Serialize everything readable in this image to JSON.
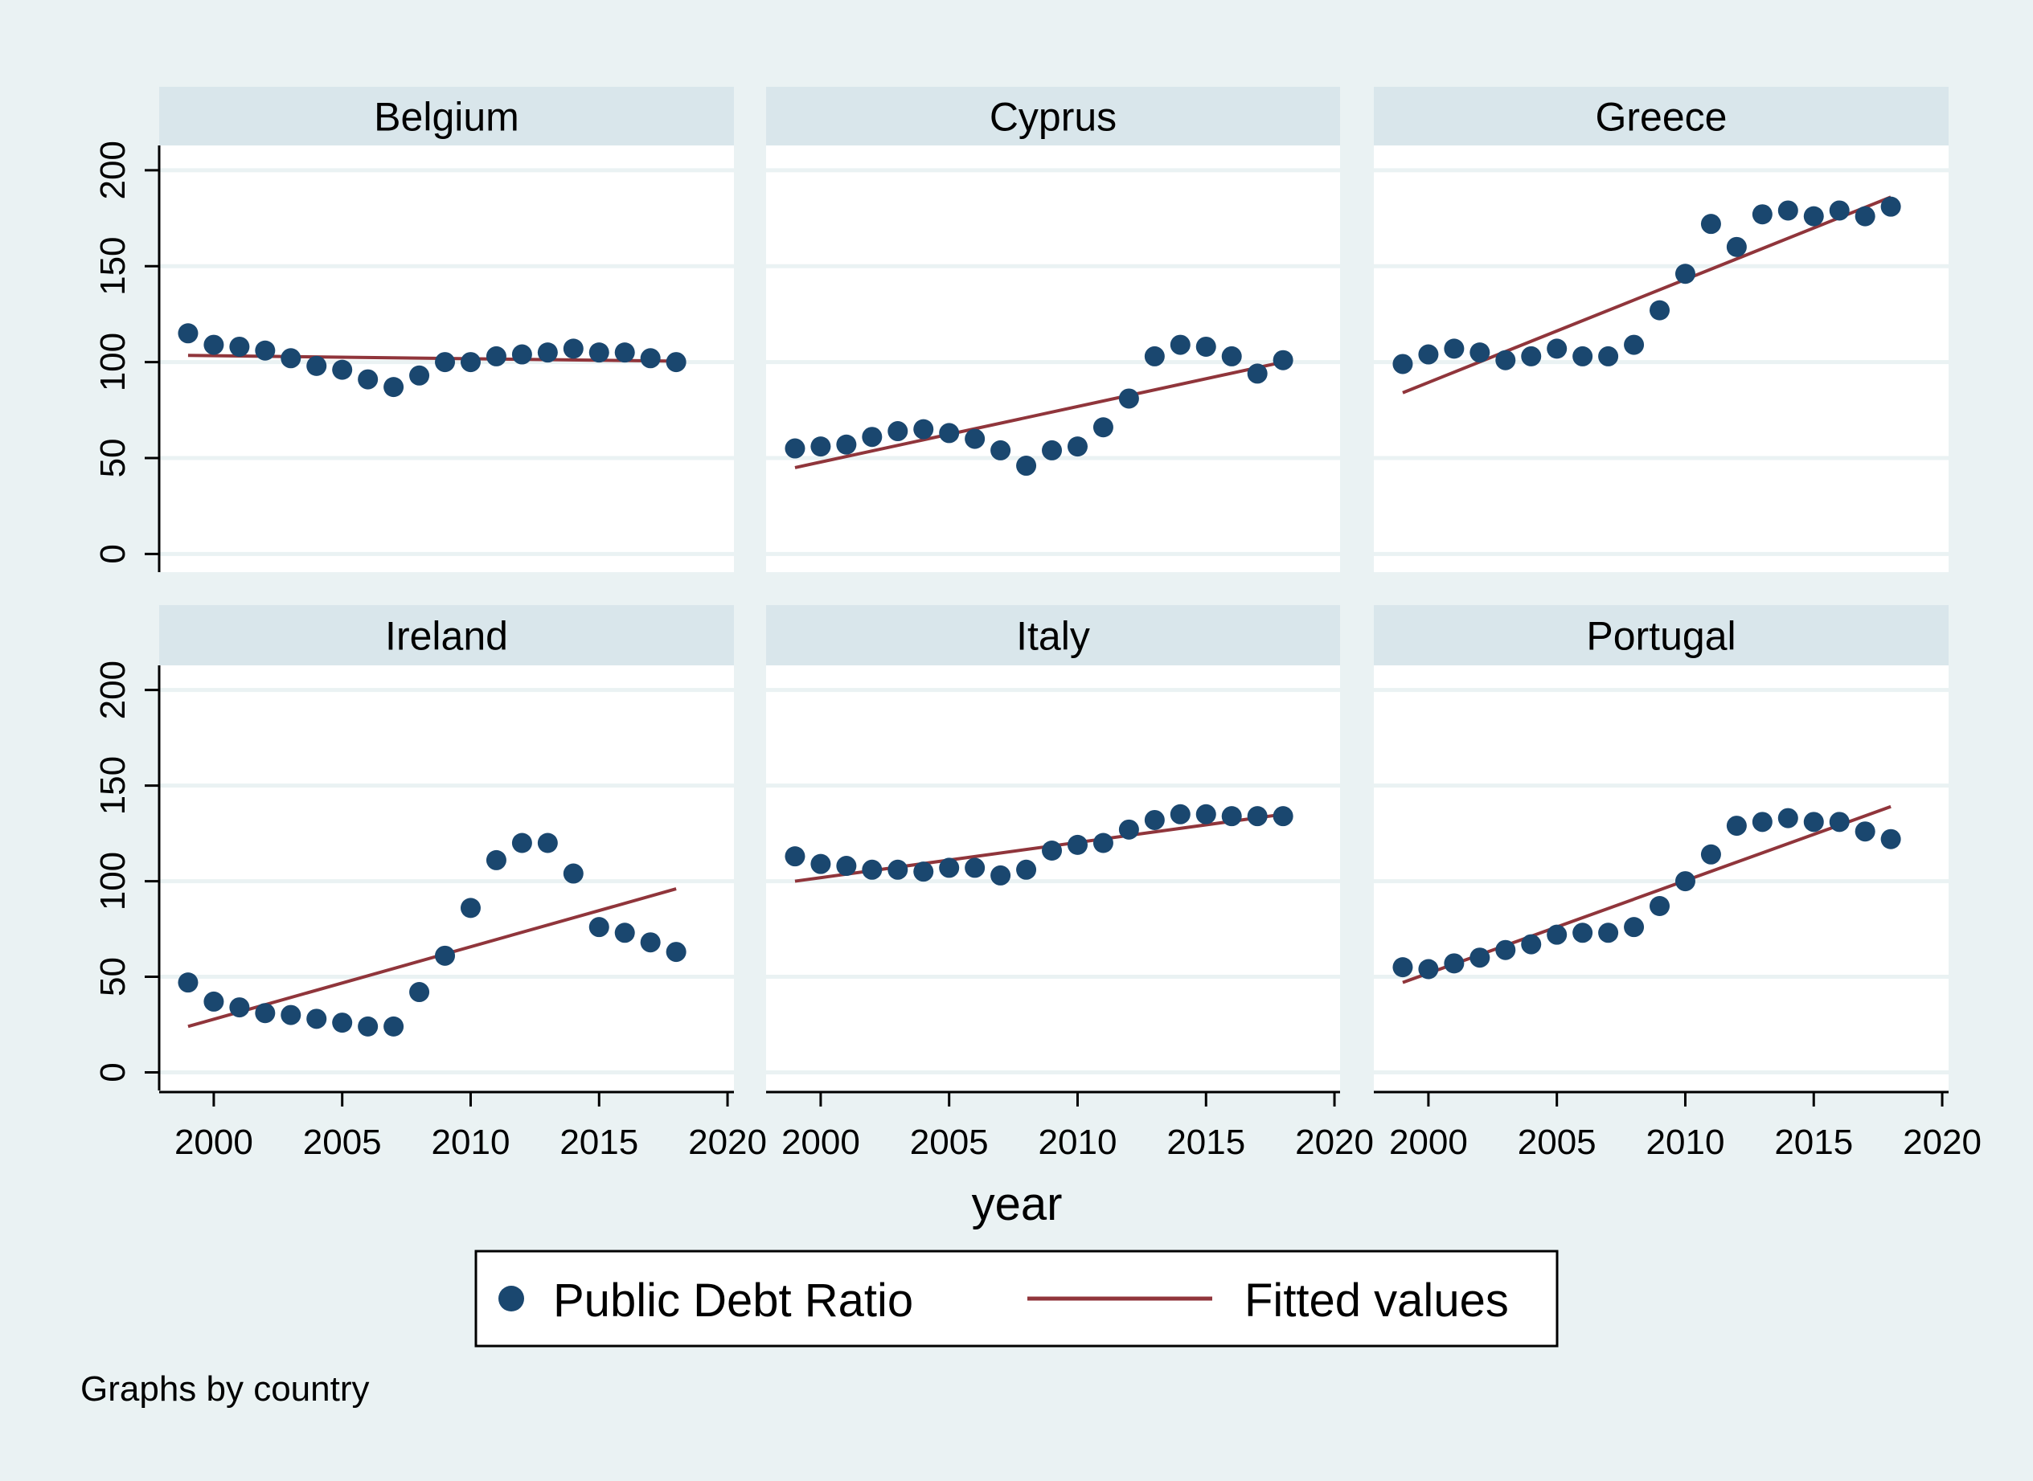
{
  "chart_data": {
    "type": "scatter",
    "facet_by": "country",
    "x_title": "year",
    "x_ticks": [
      2000,
      2005,
      2010,
      2015,
      2020
    ],
    "y_ticks": [
      0,
      50,
      100,
      150,
      200
    ],
    "xlim": [
      1998,
      2021
    ],
    "ylim": [
      -12,
      215
    ],
    "legend": {
      "position": "bottom",
      "items": [
        {
          "name": "Public Debt Ratio",
          "marker": "dot",
          "color": "#1a476f"
        },
        {
          "name": "Fitted values",
          "marker": "line",
          "color": "#90353b"
        }
      ]
    },
    "note": "Graphs by country",
    "colors": {
      "background": "#eaf2f3",
      "plot_region": "#ffffff",
      "panel_header": "#d9e6eb",
      "gridline": "#eaf2f3",
      "points": "#1a476f",
      "fit_line": "#90353b"
    },
    "years": [
      1999,
      2000,
      2001,
      2002,
      2003,
      2004,
      2005,
      2006,
      2007,
      2008,
      2009,
      2010,
      2011,
      2012,
      2013,
      2014,
      2015,
      2016,
      2017,
      2018
    ],
    "panels": [
      {
        "country": "Belgium",
        "values": [
          115,
          109,
          108,
          106,
          102,
          98,
          96,
          91,
          87,
          93,
          100,
          100,
          103,
          104,
          105,
          107,
          105,
          105,
          102,
          100
        ],
        "fit": [
          103.5,
          100.5
        ]
      },
      {
        "country": "Cyprus",
        "values": [
          55,
          56,
          57,
          61,
          64,
          65,
          63,
          60,
          54,
          46,
          54,
          56,
          66,
          81,
          103,
          109,
          108,
          103,
          94,
          101
        ],
        "fit": [
          45,
          100
        ]
      },
      {
        "country": "Greece",
        "values": [
          99,
          104,
          107,
          105,
          101,
          103,
          107,
          103,
          103,
          109,
          127,
          146,
          172,
          160,
          177,
          179,
          176,
          179,
          176,
          181
        ],
        "fit": [
          84,
          186
        ]
      },
      {
        "country": "Ireland",
        "values": [
          47,
          37,
          34,
          31,
          30,
          28,
          26,
          24,
          24,
          42,
          61,
          86,
          111,
          120,
          120,
          104,
          76,
          73,
          68,
          63
        ],
        "fit": [
          24,
          96
        ]
      },
      {
        "country": "Italy",
        "values": [
          113,
          109,
          108,
          106,
          106,
          105,
          107,
          107,
          103,
          106,
          116,
          119,
          120,
          127,
          132,
          135,
          135,
          134,
          134,
          134
        ],
        "fit": [
          100,
          135
        ]
      },
      {
        "country": "Portugal",
        "values": [
          55,
          54,
          57,
          60,
          64,
          67,
          72,
          73,
          73,
          76,
          87,
          100,
          114,
          129,
          131,
          133,
          131,
          131,
          126,
          122
        ],
        "fit": [
          47,
          139
        ]
      }
    ]
  }
}
